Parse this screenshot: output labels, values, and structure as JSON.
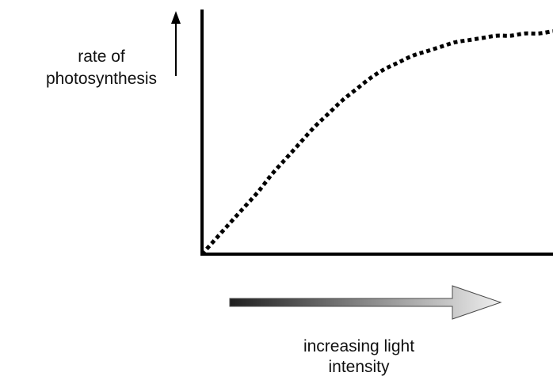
{
  "chart_data": {
    "type": "line",
    "ylabel": [
      "rate of",
      "photosynthesis"
    ],
    "xlabel": [
      "increasing light",
      "intensity"
    ],
    "x": [
      0,
      1,
      2,
      3,
      4,
      5,
      6,
      7,
      8,
      9,
      10,
      11,
      12,
      13,
      14,
      15,
      16,
      17,
      18,
      19,
      20,
      21,
      22,
      23,
      24,
      25
    ],
    "series": [
      {
        "values": [
          0.0,
          0.07,
          0.14,
          0.21,
          0.28,
          0.36,
          0.43,
          0.5,
          0.57,
          0.63,
          0.69,
          0.74,
          0.79,
          0.83,
          0.86,
          0.89,
          0.91,
          0.93,
          0.95,
          0.96,
          0.97,
          0.98,
          0.98,
          0.99,
          0.99,
          1.0
        ],
        "line_style": "dotted"
      }
    ],
    "xlim": [
      0,
      25
    ],
    "ylim": [
      0,
      1.14
    ],
    "grid": false,
    "legend": "none",
    "tick_labels": false
  },
  "colors": {
    "axes": "#000000",
    "curve": "#000000",
    "text": "#111111",
    "gradient_start": "#1f1f1f",
    "gradient_end": "#efefef"
  }
}
